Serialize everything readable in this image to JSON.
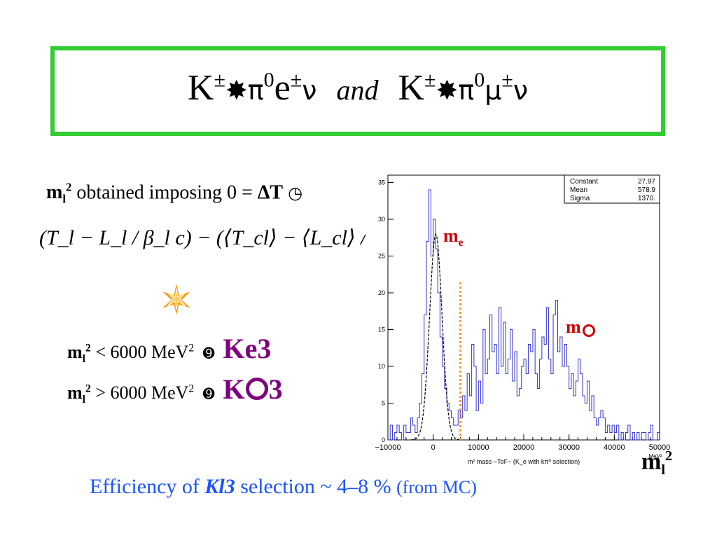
{
  "title": {
    "left": {
      "k": "K",
      "pm": "±",
      "star": "✸",
      "pi0": "π",
      "sup0": "0",
      "lep": "e",
      "lep_pm": "±",
      "nu": "ν"
    },
    "and": "and",
    "right": {
      "k": "K",
      "pm": "±",
      "star": "✸",
      "pi0": "π",
      "sup0": "0",
      "lep": "μ",
      "lep_pm": "±",
      "nu": "ν"
    }
  },
  "ml_definition": {
    "m": "m",
    "l": "l",
    "two": "2",
    "text": "obtained imposing 0 = ",
    "dt": "ΔT",
    "formula": "(T_l − L_l / β_l c) − (⟨T_cl⟩ − ⟨L_cl⟩ / c)"
  },
  "cuts": [
    {
      "lhs": "m",
      "l": "l",
      "two": "2",
      "rel": " < 6000 MeV",
      "unit_sup": "2",
      "arrow": "➒",
      "result": "Ke3"
    },
    {
      "lhs": "m",
      "l": "l",
      "two": "2",
      "rel": " > 6000 MeV",
      "unit_sup": "2",
      "arrow": "➒",
      "result": "K"
    }
  ],
  "cut2_suffix": "3",
  "efficiency": {
    "prefix": "Efficiency of ",
    "kl3": "Kl3",
    "middle": " selection  ~ 4–8 %",
    "from": "(from MC)"
  },
  "axis_label": {
    "m": "m",
    "l": "l",
    "two": "2"
  },
  "peak_labels": {
    "me": "m",
    "me_sub": "e",
    "mmu": "m"
  },
  "chart_data": {
    "type": "histogram",
    "xlabel": "m² mass −ToF− (K_e with kπ⁰ selection)",
    "x_unit": "MeV²",
    "xlim": [
      -10000,
      50000
    ],
    "ylim": [
      0,
      36
    ],
    "xticks": [
      -10000,
      0,
      10000,
      20000,
      30000,
      40000,
      50000
    ],
    "xtick_labels": [
      "−10000",
      "0",
      "10000",
      "20000",
      "30000",
      "40000",
      "50000"
    ],
    "yticks": [
      0,
      5,
      10,
      15,
      20,
      25,
      30,
      35
    ],
    "cut_line_x": 6000,
    "stats": [
      {
        "label": "Constant",
        "value": "27.97"
      },
      {
        "label": "Mean",
        "value": "578.9"
      },
      {
        "label": "Sigma",
        "value": "1370."
      }
    ],
    "fit": {
      "constant": 27.97,
      "mean": 578.9,
      "sigma": 1370
    },
    "bin_width": 500,
    "bin_start": -10000,
    "values": [
      0,
      2,
      0,
      1,
      2,
      1,
      0,
      2,
      1,
      1,
      3,
      2,
      1,
      3,
      5,
      9,
      17,
      27,
      34,
      25,
      30,
      26,
      20,
      14,
      10,
      7,
      5,
      4,
      3,
      2,
      2,
      4,
      3,
      6,
      4,
      9,
      6,
      13,
      10,
      4,
      8,
      5,
      15,
      9,
      11,
      17,
      12,
      13,
      9,
      18,
      10,
      16,
      9,
      11,
      15,
      8,
      12,
      6,
      7,
      10,
      11,
      9,
      13,
      12,
      15,
      9,
      7,
      11,
      14,
      13,
      18,
      11,
      9,
      17,
      19,
      12,
      14,
      10,
      13,
      10,
      7,
      9,
      6,
      8,
      11,
      9,
      6,
      5,
      8,
      4,
      6,
      3,
      2,
      3,
      4,
      3,
      1,
      2,
      1,
      2,
      1,
      2,
      0,
      1,
      0,
      1,
      2,
      0,
      1,
      0,
      1,
      0,
      1,
      1,
      0,
      1,
      2,
      0,
      0,
      1
    ]
  }
}
